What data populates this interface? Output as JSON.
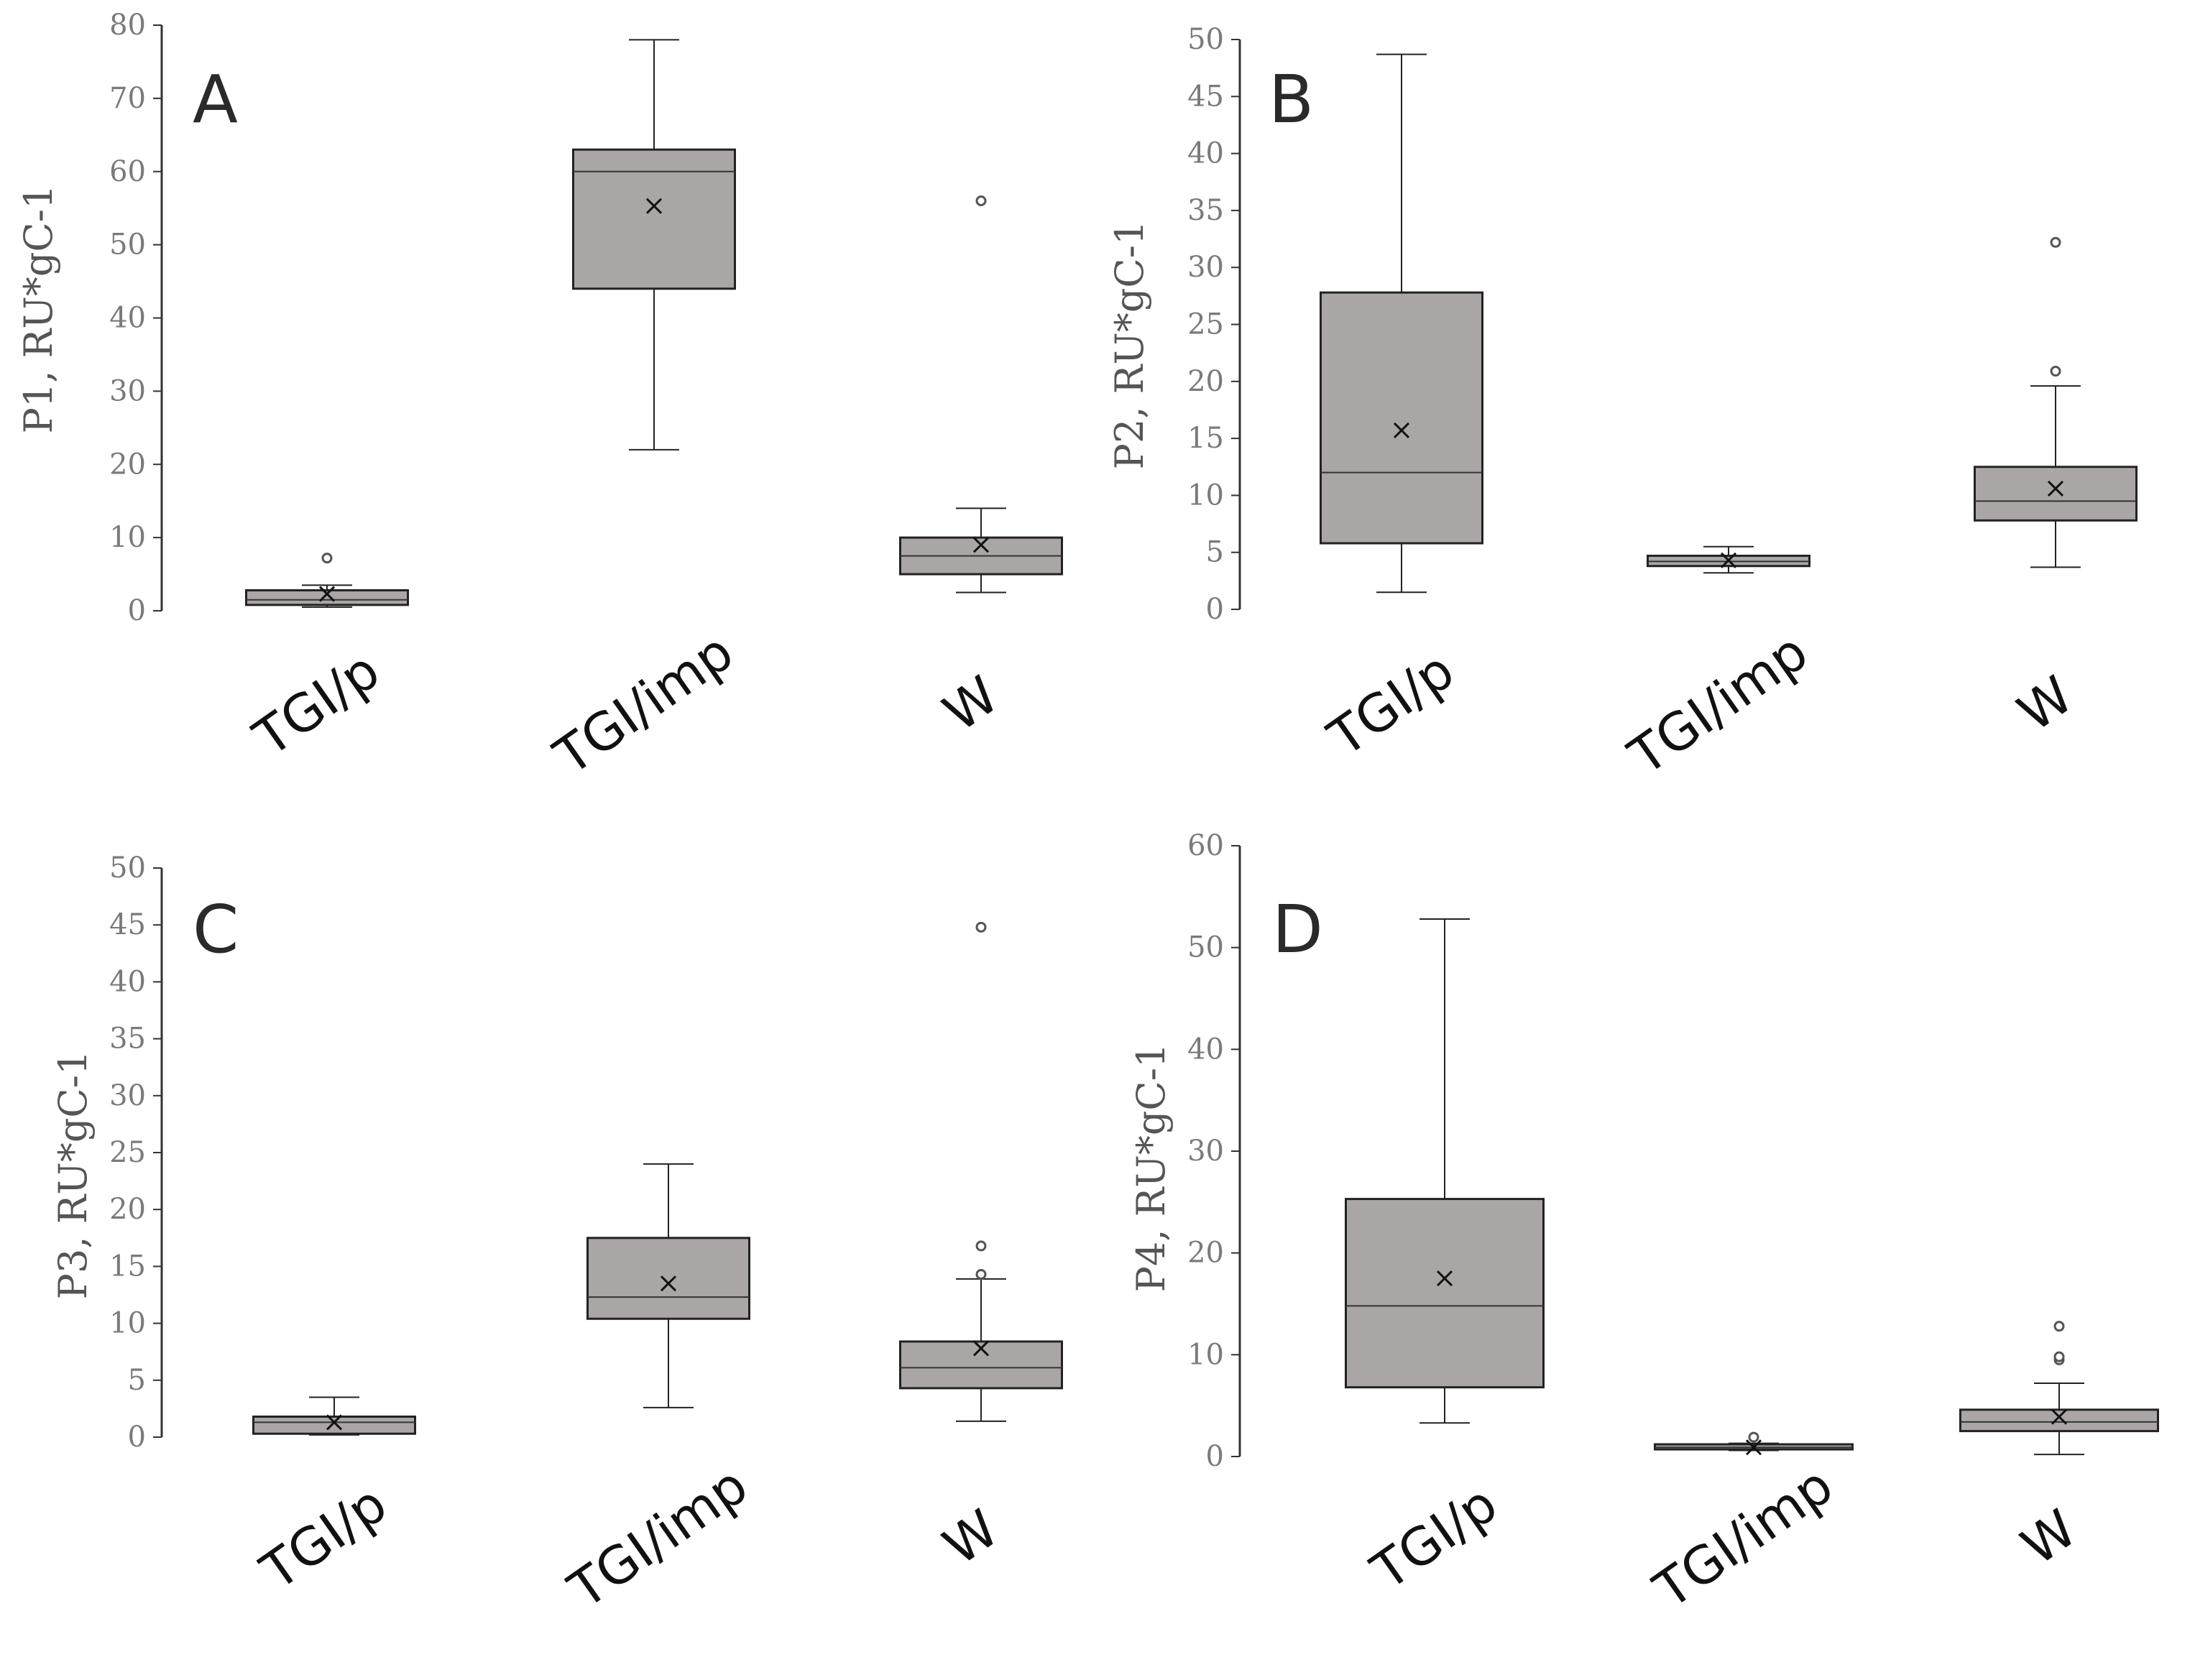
{
  "style": {
    "box_fill": "#aaa6a6",
    "box_stroke": "#222222",
    "axis_color": "#333333",
    "tick_text_color": "#7a7a7a"
  },
  "chart_data": [
    {
      "type": "box",
      "panel": "A",
      "ylabel": "P1, RU*gC-1",
      "ylim": [
        0,
        80
      ],
      "yticks": [
        0,
        10,
        20,
        30,
        40,
        50,
        60,
        70,
        80
      ],
      "categories": [
        "TGI/p",
        "TGI/imp",
        "W"
      ],
      "boxes": [
        {
          "category": "TGI/p",
          "whisker_low": 0.5,
          "q1": 0.8,
          "median": 1.5,
          "q3": 2.8,
          "whisker_high": 3.5,
          "mean": 2.3,
          "outliers": [
            7.2
          ]
        },
        {
          "category": "TGI/imp",
          "whisker_low": 22,
          "q1": 44,
          "median": 60,
          "q3": 63,
          "whisker_high": 78,
          "mean": 55.3,
          "outliers": []
        },
        {
          "category": "W",
          "whisker_low": 2.5,
          "q1": 5,
          "median": 7.5,
          "q3": 10,
          "whisker_high": 14,
          "mean": 9,
          "outliers": [
            56
          ]
        }
      ]
    },
    {
      "type": "box",
      "panel": "B",
      "ylabel": "P2, RU*gC-1",
      "ylim": [
        0,
        50
      ],
      "yticks": [
        0,
        5,
        10,
        15,
        20,
        25,
        30,
        35,
        40,
        45,
        50
      ],
      "categories": [
        "TGI/p",
        "TGI/imp",
        "W"
      ],
      "boxes": [
        {
          "category": "TGI/p",
          "whisker_low": 1.5,
          "q1": 5.8,
          "median": 12,
          "q3": 27.8,
          "whisker_high": 48.7,
          "mean": 15.7,
          "outliers": []
        },
        {
          "category": "TGI/imp",
          "whisker_low": 3.2,
          "q1": 3.8,
          "median": 4.2,
          "q3": 4.7,
          "whisker_high": 5.5,
          "mean": 4.3,
          "outliers": []
        },
        {
          "category": "W",
          "whisker_low": 3.7,
          "q1": 7.8,
          "median": 9.5,
          "q3": 12.5,
          "whisker_high": 19.6,
          "mean": 10.6,
          "outliers": [
            20.9,
            32.2
          ]
        }
      ]
    },
    {
      "type": "box",
      "panel": "C",
      "ylabel": "P3, RU*gC-1",
      "ylim": [
        0,
        50
      ],
      "yticks": [
        0,
        5,
        10,
        15,
        20,
        25,
        30,
        35,
        40,
        45,
        50
      ],
      "categories": [
        "TGI/p",
        "TGI/imp",
        "W"
      ],
      "boxes": [
        {
          "category": "TGI/p",
          "whisker_low": 0.2,
          "q1": 0.3,
          "median": 1.3,
          "q3": 1.8,
          "whisker_high": 3.5,
          "mean": 1.3,
          "outliers": []
        },
        {
          "category": "TGI/imp",
          "whisker_low": 2.6,
          "q1": 10.4,
          "median": 12.3,
          "q3": 17.5,
          "whisker_high": 24,
          "mean": 13.5,
          "outliers": []
        },
        {
          "category": "W",
          "whisker_low": 1.4,
          "q1": 4.3,
          "median": 6.1,
          "q3": 8.4,
          "whisker_high": 13.9,
          "mean": 7.8,
          "outliers": [
            14.3,
            16.8,
            44.8
          ]
        }
      ]
    },
    {
      "type": "box",
      "panel": "D",
      "ylabel": "P4, RU*gC-1",
      "ylim": [
        0,
        60
      ],
      "yticks": [
        0,
        10,
        20,
        30,
        40,
        50,
        60
      ],
      "categories": [
        "TGI/p",
        "TGI/imp",
        "W"
      ],
      "boxes": [
        {
          "category": "TGI/p",
          "whisker_low": 3.3,
          "q1": 6.8,
          "median": 14.8,
          "q3": 25.3,
          "whisker_high": 52.8,
          "mean": 17.5,
          "outliers": []
        },
        {
          "category": "TGI/imp",
          "whisker_low": 0.6,
          "q1": 0.7,
          "median": 0.9,
          "q3": 1.2,
          "whisker_high": 1.3,
          "mean": 0.9,
          "outliers": [
            1.9
          ]
        },
        {
          "category": "W",
          "whisker_low": 0.2,
          "q1": 2.5,
          "median": 3.4,
          "q3": 4.6,
          "whisker_high": 7.2,
          "mean": 3.9,
          "outliers": [
            9.5,
            9.8,
            12.8
          ]
        }
      ]
    }
  ]
}
